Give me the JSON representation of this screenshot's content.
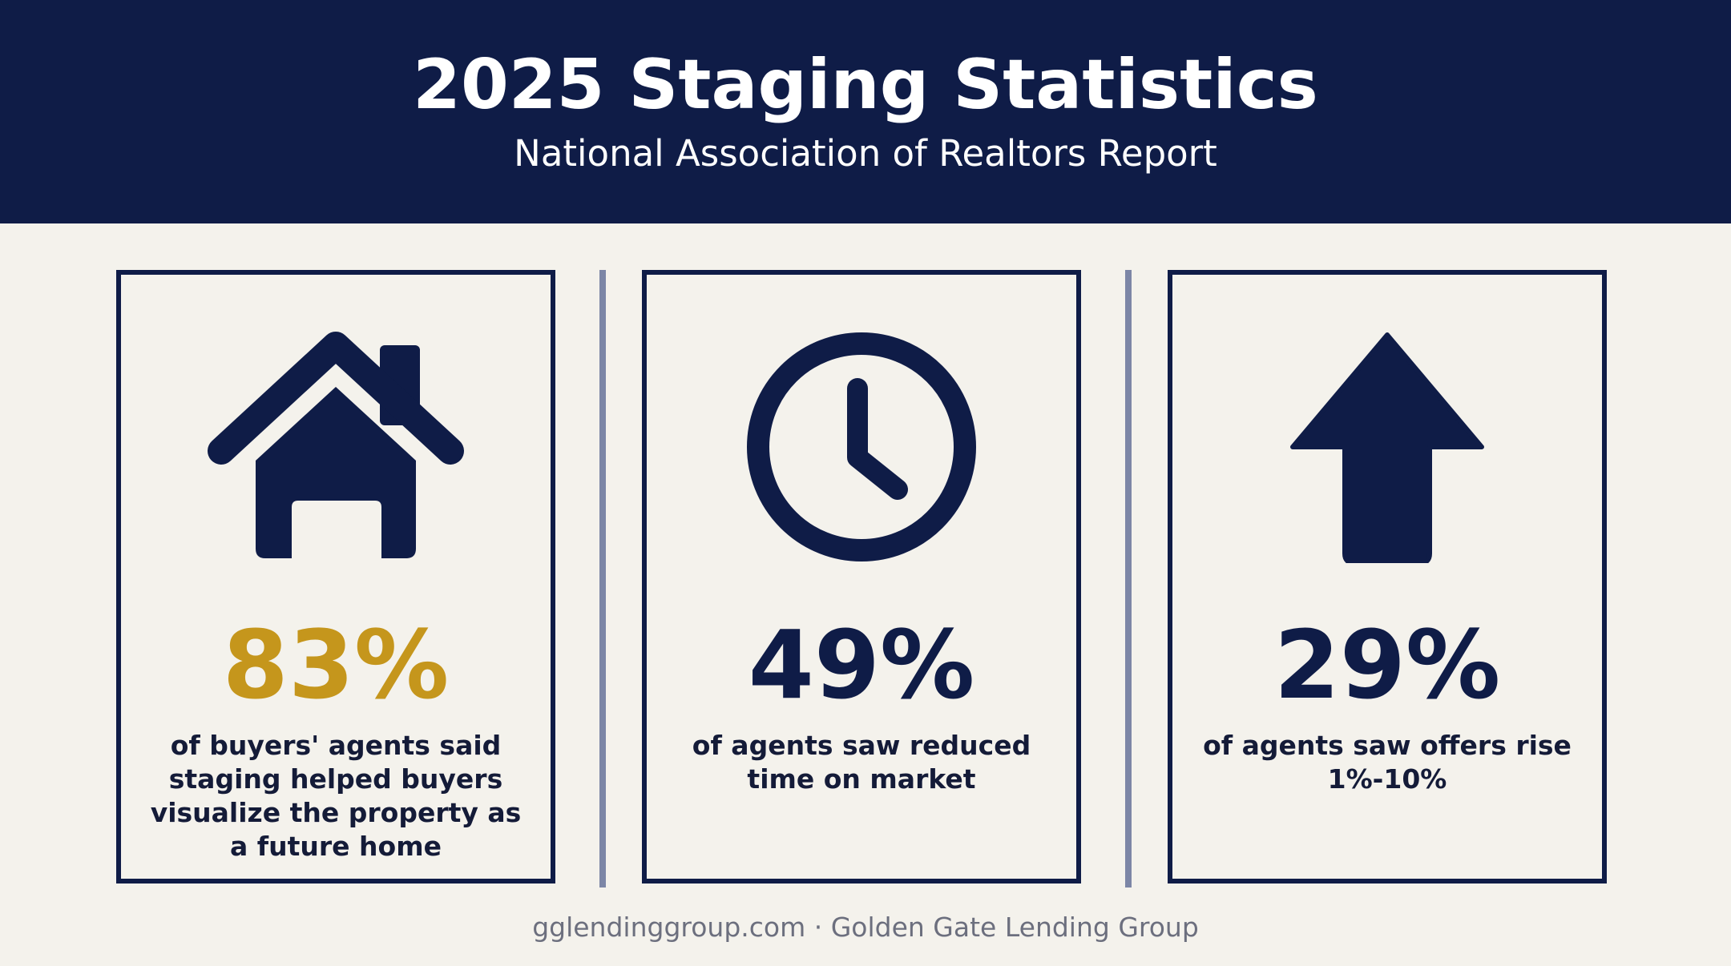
{
  "header": {
    "title": "2025 Staging Statistics",
    "subtitle": "National Association of Realtors Report"
  },
  "colors": {
    "navy": "#0f1c47",
    "gold": "#c5961c",
    "background": "#f4f2ec"
  },
  "stats": [
    {
      "icon": "house-icon",
      "value": "83%",
      "description": "of buyers' agents said staging helped buyers visualize the property as a future home"
    },
    {
      "icon": "clock-icon",
      "value": "49%",
      "description": "of agents saw reduced time on market"
    },
    {
      "icon": "arrow-up-icon",
      "value": "29%",
      "description": "of agents saw offers rise 1%-10%"
    }
  ],
  "footer": {
    "text": "gglendinggroup.com · Golden Gate Lending Group"
  }
}
